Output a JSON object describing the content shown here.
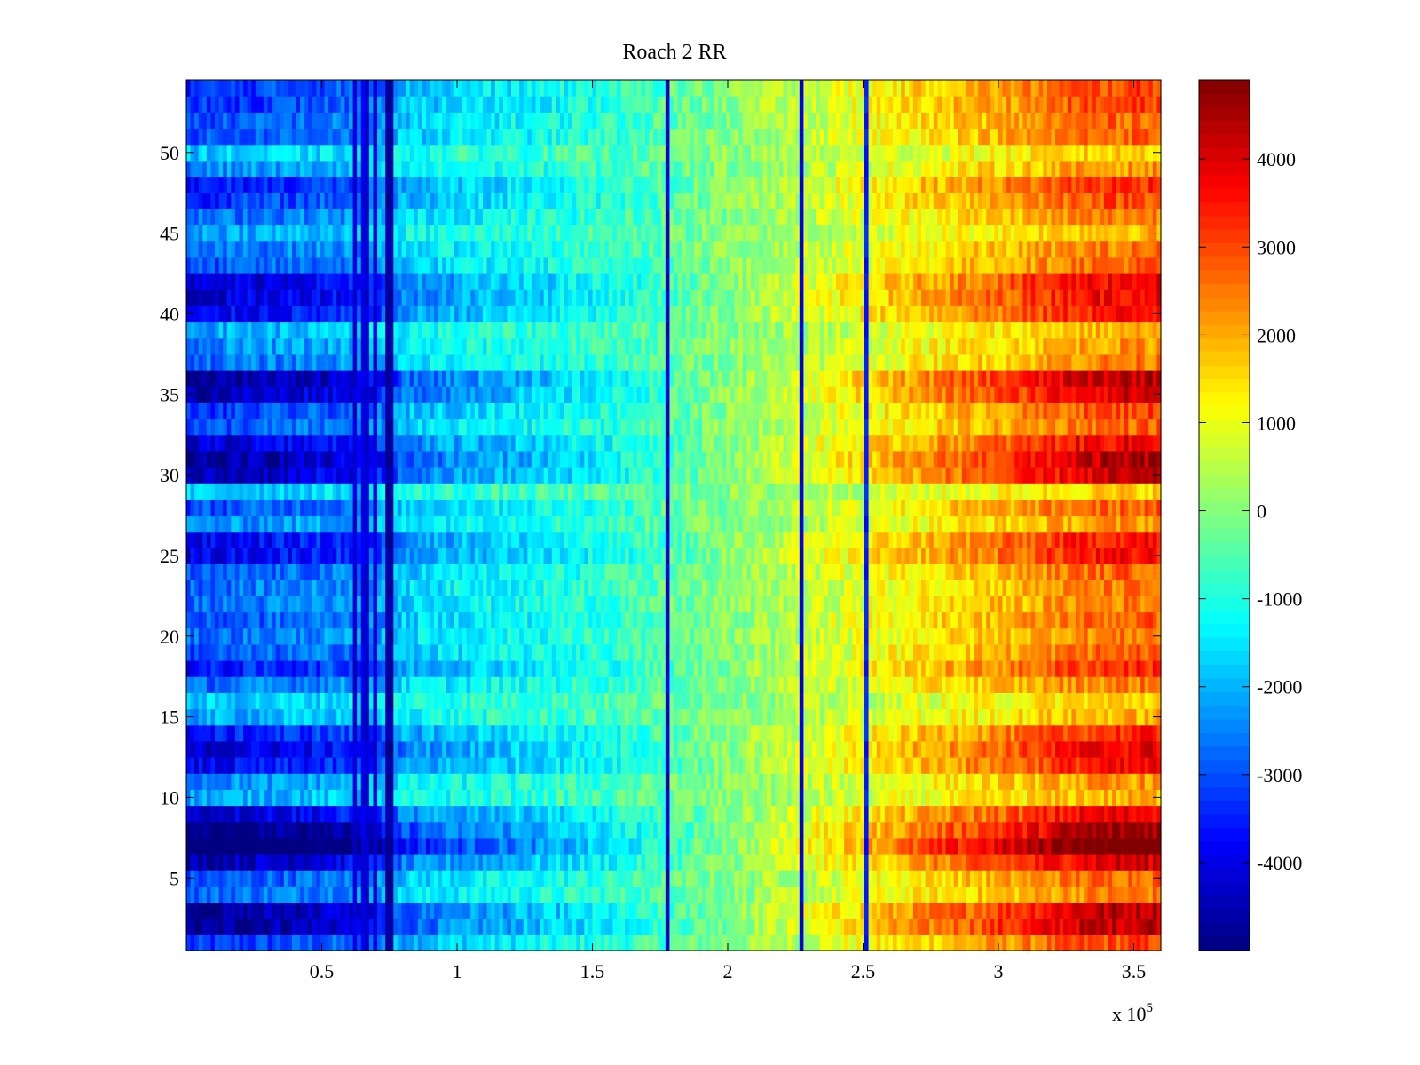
{
  "chart_data": {
    "type": "heatmap",
    "title": "Roach 2 RR",
    "xlabel": "",
    "ylabel": "",
    "x_multiplier_label": "x 10",
    "x_multiplier_exponent": "5",
    "xlim": [
      0,
      3.6
    ],
    "ylim": [
      0.5,
      54.5
    ],
    "x_ticks": [
      0.5,
      1,
      1.5,
      2,
      2.5,
      3,
      3.5
    ],
    "x_tick_labels": [
      "0.5",
      "1",
      "1.5",
      "2",
      "2.5",
      "3",
      "3.5"
    ],
    "y_ticks": [
      5,
      10,
      15,
      20,
      25,
      30,
      35,
      40,
      45,
      50
    ],
    "y_tick_labels": [
      "5",
      "10",
      "15",
      "20",
      "25",
      "30",
      "35",
      "40",
      "45",
      "50"
    ],
    "rows": 54,
    "colormap": "jet",
    "clim": [
      -5000,
      4900
    ],
    "colorbar_ticks": [
      -4000,
      -3000,
      -2000,
      -1000,
      0,
      1000,
      2000,
      3000,
      4000
    ],
    "colorbar_tick_labels": [
      "-4000",
      "-3000",
      "-2000",
      "-1000",
      "0",
      "1000",
      "2000",
      "3000",
      "4000"
    ],
    "column_profile": [
      {
        "x": 0.0,
        "v": -3100
      },
      {
        "x": 0.45,
        "v": -2700
      },
      {
        "x": 0.7,
        "v": -2500
      },
      {
        "x": 0.8,
        "v": -1800
      },
      {
        "x": 1.0,
        "v": -1500
      },
      {
        "x": 1.3,
        "v": -1200
      },
      {
        "x": 1.6,
        "v": -800
      },
      {
        "x": 1.9,
        "v": -200
      },
      {
        "x": 2.2,
        "v": 400
      },
      {
        "x": 2.5,
        "v": 1000
      },
      {
        "x": 2.8,
        "v": 1600
      },
      {
        "x": 3.1,
        "v": 2100
      },
      {
        "x": 3.3,
        "v": 2600
      },
      {
        "x": 3.6,
        "v": 2800
      }
    ],
    "row_strength": [
      1.1,
      1.6,
      1.6,
      0.9,
      1.0,
      1.5,
      2.0,
      1.7,
      1.4,
      0.7,
      0.8,
      1.3,
      1.4,
      1.2,
      0.7,
      0.6,
      0.9,
      1.2,
      1.0,
      0.9,
      1.0,
      0.9,
      0.9,
      1.0,
      1.3,
      1.3,
      0.8,
      1.0,
      0.6,
      1.5,
      1.6,
      1.4,
      1.0,
      1.1,
      1.5,
      1.6,
      0.9,
      0.8,
      0.7,
      1.3,
      1.4,
      1.4,
      1.0,
      0.9,
      0.7,
      0.9,
      1.1,
      1.2,
      0.8,
      0.6,
      1.0,
      1.0,
      1.1,
      1.1
    ],
    "vertical_streaks": [
      {
        "x": 0.62,
        "v": -4200
      },
      {
        "x": 0.65,
        "v": -4000
      },
      {
        "x": 0.67,
        "v": -4300
      },
      {
        "x": 0.7,
        "v": -4100
      },
      {
        "x": 0.74,
        "v": -4700
      },
      {
        "x": 0.76,
        "v": -4700
      },
      {
        "x": 1.78,
        "v": -4200
      },
      {
        "x": 2.27,
        "v": -4000
      },
      {
        "x": 2.51,
        "v": -3500
      }
    ]
  }
}
